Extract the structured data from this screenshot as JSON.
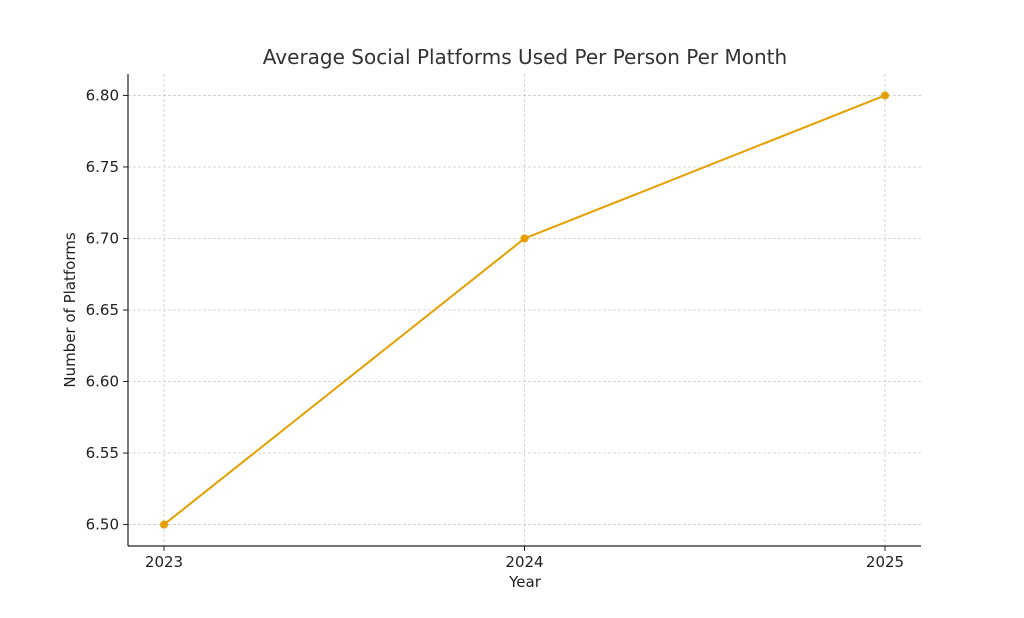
{
  "chart_data": {
    "type": "line",
    "title": "Average Social Platforms Used Per Person Per Month",
    "xlabel": "Year",
    "ylabel": "Number of Platforms",
    "categories": [
      "2023",
      "2024",
      "2025"
    ],
    "series": [
      {
        "values": [
          6.5,
          6.7,
          6.8
        ],
        "color": "#e69f00"
      }
    ],
    "ylim": [
      6.485,
      6.815
    ],
    "y_ticks": [
      6.5,
      6.55,
      6.6,
      6.65,
      6.7,
      6.75,
      6.8
    ],
    "y_tick_labels": [
      "6.50",
      "6.55",
      "6.60",
      "6.65",
      "6.70",
      "6.75",
      "6.80"
    ],
    "grid": true,
    "marker": "circle"
  }
}
